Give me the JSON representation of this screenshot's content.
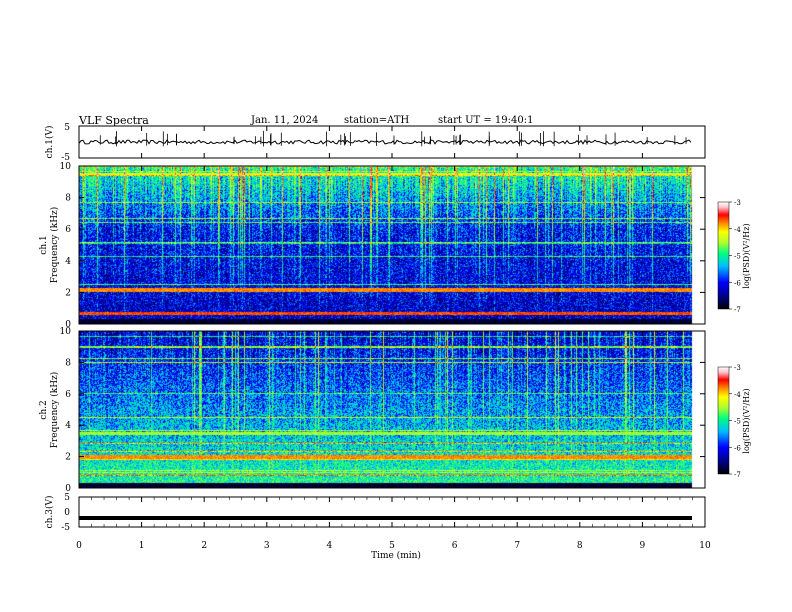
{
  "header": {
    "title": "VLF Spectra",
    "date": "Jan. 11, 2024",
    "station": "station=ATH",
    "start": "start UT =  19:40:1"
  },
  "colors": {
    "colormap": [
      "#000000",
      "#00008b",
      "#0000ff",
      "#00bfff",
      "#00ff7f",
      "#adff2f",
      "#ffff00",
      "#ff8c00",
      "#ff0000",
      "#ffc0cb",
      "#ffffff"
    ]
  },
  "chart_data": [
    {
      "type": "line",
      "ylabel": "ch.1(V)",
      "ylim": [
        -5,
        5
      ],
      "yticks": [
        "5",
        "-5"
      ],
      "xlim": [
        0,
        10
      ],
      "series": [
        {
          "baseline": 0.0,
          "noise_amplitude": 0.6,
          "spike_amplitude": 3.5
        }
      ]
    },
    {
      "type": "heatmap",
      "ylabel": "Frequency (kHz)",
      "channel_label": "ch.1",
      "ylim": [
        0,
        10
      ],
      "yticks": [
        "0",
        "2",
        "4",
        "6",
        "8",
        "10"
      ],
      "xlim": [
        0,
        10
      ],
      "colorbar": {
        "label": "log(PSD)(V²/Hz)",
        "range": [
          -7,
          -3
        ],
        "ticks": [
          "-3",
          "-4",
          "-5",
          "-6",
          "-7"
        ]
      },
      "features": [
        {
          "description_freq_khz": 2.2,
          "log_psd": -4.2
        },
        {
          "description_freq_khz": 0.7,
          "log_psd": -4.0
        },
        {
          "description_freq_khz": 9.5,
          "log_psd": -4.8
        }
      ]
    },
    {
      "type": "heatmap",
      "ylabel": "Frequency (kHz)",
      "channel_label": "ch.2",
      "ylim": [
        0,
        10
      ],
      "yticks": [
        "0",
        "2",
        "4",
        "6",
        "8",
        "10"
      ],
      "xlim": [
        0,
        10
      ],
      "colorbar": {
        "label": "log(PSD)(V²/Hz)",
        "range": [
          -7,
          -3
        ],
        "ticks": [
          "-3",
          "-4",
          "-5",
          "-6",
          "-7"
        ]
      },
      "features": [
        {
          "description_freq_khz": 2.0,
          "log_psd": -4.2
        },
        {
          "description_freq_khz": 3.5,
          "log_psd": -5.0
        }
      ]
    },
    {
      "type": "line",
      "ylabel": "ch.3(V)",
      "ylim": [
        -5,
        5
      ],
      "yticks": [
        "5",
        "0",
        "-5"
      ],
      "xlim": [
        0,
        10
      ],
      "series": [
        {
          "baseline": -2.0,
          "noise_amplitude": 0.0
        }
      ]
    }
  ],
  "xaxis": {
    "label": "Time (min)",
    "ticks": [
      "0",
      "1",
      "2",
      "3",
      "4",
      "5",
      "6",
      "7",
      "8",
      "9",
      "10"
    ]
  }
}
